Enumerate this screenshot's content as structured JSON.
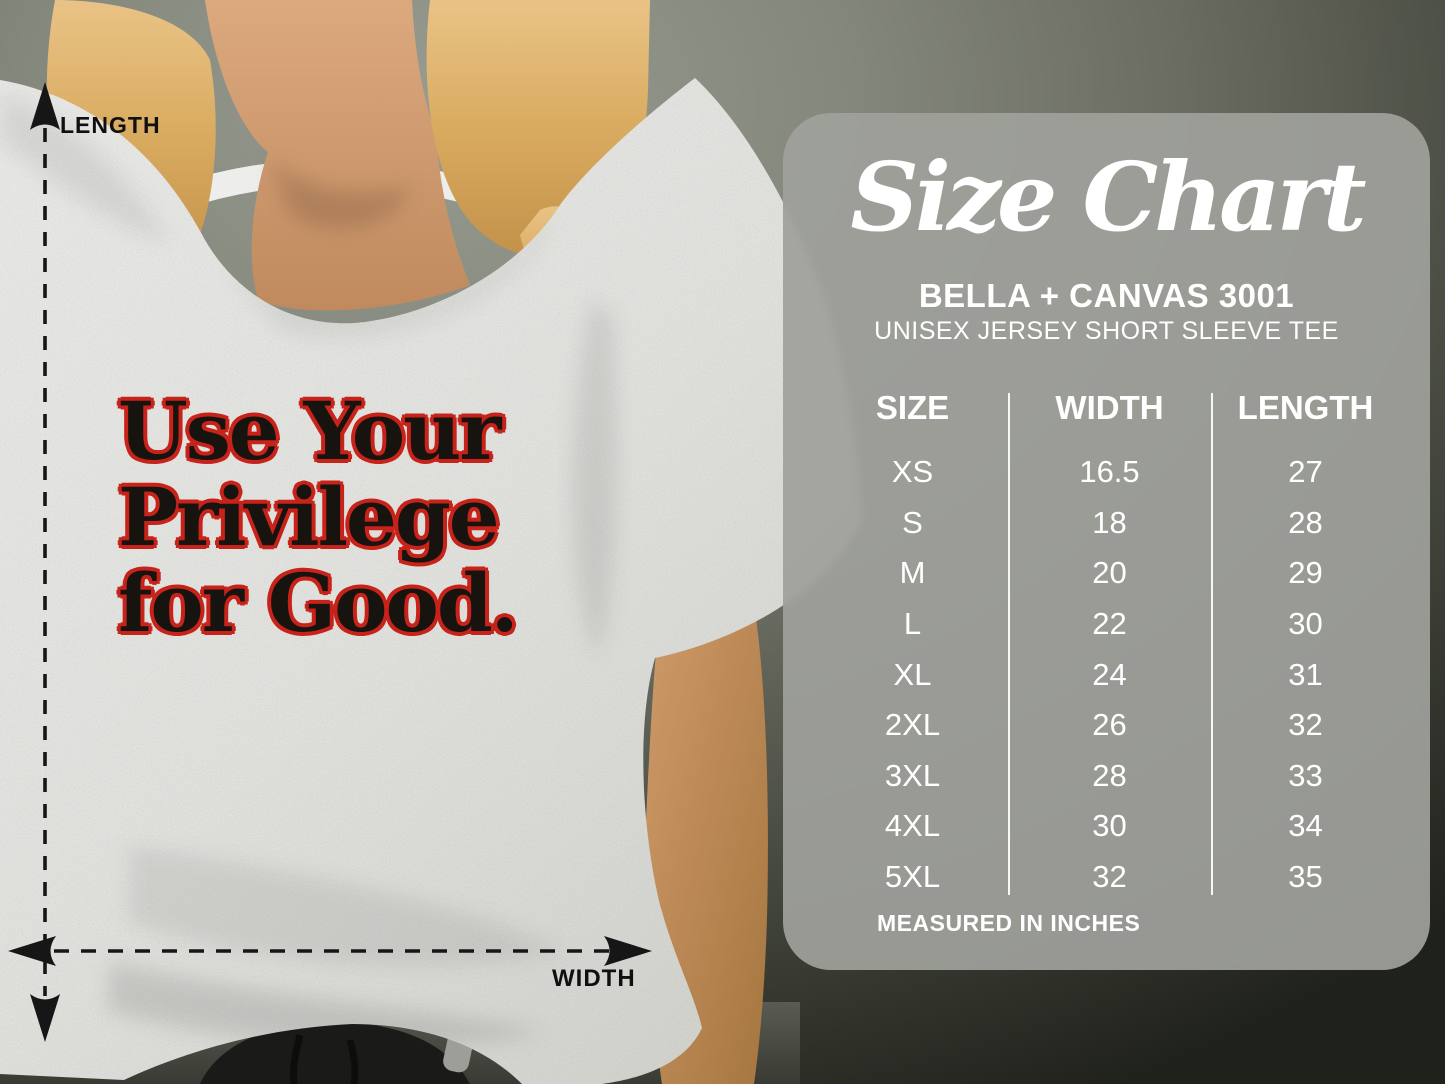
{
  "measurements": {
    "length_label": "LENGTH",
    "width_label": "WIDTH"
  },
  "shirt_graphic": {
    "line1": "Use Your",
    "line2": "Privilege",
    "line3": "for Good.",
    "text_color": "#17130f",
    "outline_color": "#c7231a"
  },
  "panel": {
    "title": "Size Chart",
    "brand": "BELLA + CANVAS 3001",
    "product": "UNISEX JERSEY SHORT SLEEVE TEE",
    "footnote": "MEASURED IN INCHES",
    "bg_color": "#9fa09b",
    "text_color": "#ffffff"
  },
  "colors": {
    "background_dark": "#23251e",
    "background_light": "#989c90",
    "arrow_color": "#161616",
    "shirt_fabric": "#ececea",
    "hair": "#d9ac62",
    "skin": "#cf9a6c",
    "pants": "#4c4d45"
  },
  "chart_data": {
    "type": "table",
    "title": "Size Chart",
    "subtitle": "BELLA + CANVAS 3001 — UNISEX JERSEY SHORT SLEEVE TEE",
    "units": "inches",
    "columns": [
      "SIZE",
      "WIDTH",
      "LENGTH"
    ],
    "rows": [
      {
        "size": "XS",
        "width": "16.5",
        "length": "27"
      },
      {
        "size": "S",
        "width": "18",
        "length": "28"
      },
      {
        "size": "M",
        "width": "20",
        "length": "29"
      },
      {
        "size": "L",
        "width": "22",
        "length": "30"
      },
      {
        "size": "XL",
        "width": "24",
        "length": "31"
      },
      {
        "size": "2XL",
        "width": "26",
        "length": "32"
      },
      {
        "size": "3XL",
        "width": "28",
        "length": "33"
      },
      {
        "size": "4XL",
        "width": "30",
        "length": "34"
      },
      {
        "size": "5XL",
        "width": "32",
        "length": "35"
      }
    ]
  }
}
